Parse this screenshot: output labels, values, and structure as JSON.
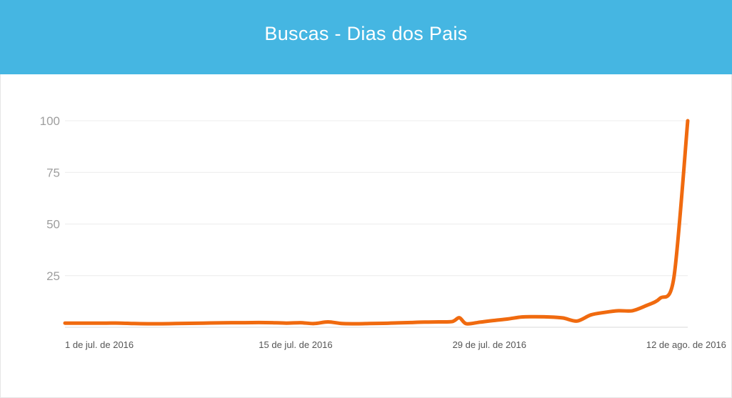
{
  "header": {
    "title": "Buscas - Dias dos Pais",
    "background_color": "#45b6e2"
  },
  "chart_data": {
    "type": "line",
    "title": "Buscas - Dias dos Pais",
    "xlabel": "",
    "ylabel": "",
    "ylim": [
      0,
      100
    ],
    "yticks": [
      25,
      50,
      75,
      100
    ],
    "grid": true,
    "legend": "none",
    "x_tick_labels": [
      {
        "label": "1 de jul. de 2016",
        "day": 0
      },
      {
        "label": "15 de jul. de 2016",
        "day": 14
      },
      {
        "label": "29 de jul. de 2016",
        "day": 28
      },
      {
        "label": "12 de ago. de 2016",
        "day": 42
      }
    ],
    "series": [
      {
        "color": "#f06a0f",
        "x": [
          0,
          1,
          2,
          3,
          4,
          5,
          6,
          7,
          8,
          9,
          10,
          11,
          12,
          13,
          14,
          15,
          16,
          17,
          18,
          19,
          20,
          21,
          22,
          23,
          24,
          25,
          26,
          27,
          28,
          28.5,
          29,
          30,
          31,
          32,
          33,
          34,
          35,
          36,
          37,
          38,
          39,
          40,
          41,
          42,
          43,
          44,
          45
        ],
        "values": [
          2,
          2,
          2,
          2,
          2,
          1.8,
          1.7,
          1.7,
          1.8,
          1.9,
          2,
          2.1,
          2.2,
          2.2,
          2.3,
          2.2,
          2,
          2.2,
          1.8,
          2.6,
          1.8,
          1.7,
          1.8,
          1.9,
          2.1,
          2.3,
          2.5,
          2.6,
          2.8,
          4.6,
          1.7,
          2.5,
          3.3,
          4,
          5,
          5.1,
          5,
          4.5,
          3,
          6,
          7.2,
          8,
          8,
          10.5,
          14,
          24,
          100
        ]
      }
    ]
  }
}
